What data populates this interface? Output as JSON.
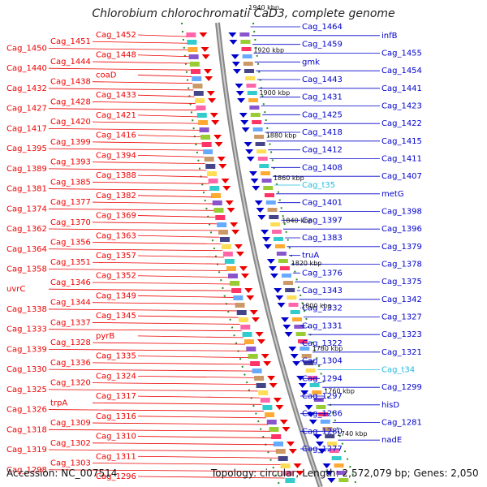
{
  "title": "Chlorobium chlorochromatii CaD3, complete genome",
  "accession": "Accession: NC_007514",
  "topology": "Topology: circular; Length: 2,572,079 bp; Genes: 2,050",
  "colors": {
    "forward": "#ee0000",
    "reverse": "#0000cc",
    "rna": "#22bbdd",
    "backbone": "#888888",
    "ruler": "#2a8a2a"
  },
  "kbp_ticks": [
    "1940 kbp",
    "1920 kbp",
    "1900 kbp",
    "1880 kbp",
    "1860 kbp",
    "1840 kbp",
    "1820 kbp",
    "1800 kbp",
    "1780 kbp",
    "1760 kbp",
    "1740 kbp"
  ],
  "left_labels": [
    "Cag_1452",
    "Cag_1451",
    "Cag_1450",
    "Cag_1448",
    "Cag_1444",
    "Cag_1440",
    "coaD",
    "Cag_1438",
    "Cag_1432",
    "Cag_1433",
    "Cag_1428",
    "Cag_1427",
    "Cag_1421",
    "Cag_1420",
    "Cag_1417",
    "Cag_1416",
    "Cag_1399",
    "Cag_1395",
    "Cag_1394",
    "Cag_1393",
    "Cag_1389",
    "Cag_1388",
    "Cag_1385",
    "Cag_1381",
    "Cag_1382",
    "Cag_1377",
    "Cag_1374",
    "Cag_1369",
    "Cag_1370",
    "Cag_1362",
    "Cag_1363",
    "Cag_1356",
    "Cag_1364",
    "Cag_1357",
    "Cag_1351",
    "Cag_1358",
    "Cag_1352",
    "Cag_1346",
    "uvrC",
    "Cag_1349",
    "Cag_1344",
    "Cag_1338",
    "Cag_1345",
    "Cag_1337",
    "Cag_1333",
    "pyrB",
    "Cag_1328",
    "Cag_1339",
    "Cag_1335",
    "Cag_1336",
    "Cag_1330",
    "Cag_1324",
    "Cag_1320",
    "Cag_1325",
    "Cag_1317",
    "trpA",
    "Cag_1326",
    "Cag_1316",
    "Cag_1309",
    "Cag_1318",
    "Cag_1310",
    "Cag_1302",
    "Cag_1319",
    "Cag_1311",
    "Cag_1303",
    "Cag_1298",
    "Cag_1296"
  ],
  "right_labels": [
    "Cag_1464",
    "infB",
    "Cag_1459",
    "Cag_1455",
    "gmk",
    "Cag_1454",
    "Cag_1443",
    "Cag_1441",
    "Cag_1431",
    "Cag_1423",
    "Cag_1425",
    "Cag_1422",
    "Cag_1418",
    "Cag_1415",
    "Cag_1412",
    "Cag_1411",
    "Cag_1408",
    "Cag_1407",
    "Cag_t35",
    "metG",
    "Cag_1401",
    "Cag_1398",
    "Cag_1397",
    "Cag_1396",
    "Cag_1383",
    "Cag_1379",
    "truA",
    "Cag_1378",
    "Cag_1376",
    "Cag_1375",
    "Cag_1343",
    "Cag_1342",
    "Cag_1332",
    "Cag_1327",
    "Cag_1331",
    "Cag_1323",
    "Cag_1322",
    "Cag_1321",
    "Cag_1304",
    "Cag_t34",
    "Cag_1294",
    "Cag_1299",
    "Cag_1297",
    "hisD",
    "Cag_1286",
    "Cag_1281",
    "Cag_1280",
    "nadE",
    "Cag_1277"
  ]
}
